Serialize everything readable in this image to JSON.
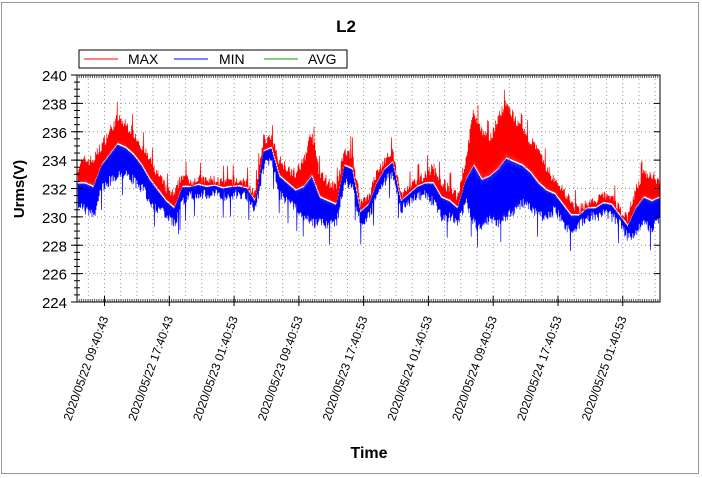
{
  "chart_data": {
    "type": "line",
    "title": "L2",
    "xlabel": "Time",
    "ylabel": "Urms(V)",
    "ylim": [
      224,
      240
    ],
    "yticks": [
      224,
      226,
      228,
      230,
      232,
      234,
      236,
      238,
      240
    ],
    "grid": true,
    "legend_position": "top-left",
    "xticks": [
      {
        "hour": 3.4,
        "label": "2020/05/22  09:40:43"
      },
      {
        "hour": 11.4,
        "label": "2020/05/22  17:40:43"
      },
      {
        "hour": 19.4,
        "label": "2020/05/23  01:40:53"
      },
      {
        "hour": 27.4,
        "label": "2020/05/23  09:40:53"
      },
      {
        "hour": 35.4,
        "label": "2020/05/23  17:40:53"
      },
      {
        "hour": 43.4,
        "label": "2020/05/24  01:40:53"
      },
      {
        "hour": 51.4,
        "label": "2020/05/24  09:40:53"
      },
      {
        "hour": 59.4,
        "label": "2020/05/24  17:40:53"
      },
      {
        "hour": 67.4,
        "label": "2020/05/25  01:40:53"
      }
    ],
    "xlim": [
      0,
      72
    ],
    "series": [
      {
        "name": "MAX",
        "color": "#ff0000",
        "values": [
          233.5,
          234,
          234,
          235,
          236,
          237,
          236.5,
          236,
          235,
          234,
          233,
          232,
          231.5,
          233,
          232.5,
          232.7,
          232.5,
          232.6,
          232.4,
          232.5,
          232.5,
          232.4,
          231.5,
          235.5,
          235.5,
          234,
          233.5,
          233,
          234,
          236,
          233,
          232.5,
          232,
          234.5,
          234.5,
          231,
          231.5,
          233,
          234,
          234.5,
          231.5,
          232,
          232.5,
          233,
          233.5,
          232.5,
          232,
          231.5,
          234,
          237.5,
          236,
          235.5,
          237,
          238,
          237,
          236,
          235.5,
          234.5,
          233.5,
          232.5,
          232,
          231,
          230.5,
          231,
          231,
          231.5,
          231.5,
          230.5,
          230,
          232,
          233,
          233,
          232.5
        ]
      },
      {
        "name": "MIN",
        "color": "#0000ff",
        "values": [
          231,
          230.5,
          230,
          232,
          232.5,
          233,
          233,
          232.5,
          232,
          231,
          230.5,
          230,
          229.5,
          231,
          231.5,
          231.6,
          231.5,
          231.6,
          231.4,
          231.5,
          231.6,
          231.4,
          230.5,
          233.5,
          234,
          231.5,
          231,
          230.5,
          230,
          229.5,
          229.5,
          229.5,
          229.5,
          232.5,
          232,
          229.5,
          230,
          231.5,
          232.5,
          233,
          230.5,
          231,
          231.5,
          231.5,
          231,
          230,
          230,
          229.5,
          231,
          229.5,
          229,
          230,
          229.5,
          230,
          230.5,
          231,
          230.5,
          230,
          230,
          230.5,
          229.5,
          229,
          229.5,
          230,
          230,
          230.2,
          230,
          229.5,
          228.5,
          229,
          229.5,
          229,
          230
        ]
      },
      {
        "name": "AVG",
        "color": "#00a000",
        "values": []
      }
    ]
  }
}
